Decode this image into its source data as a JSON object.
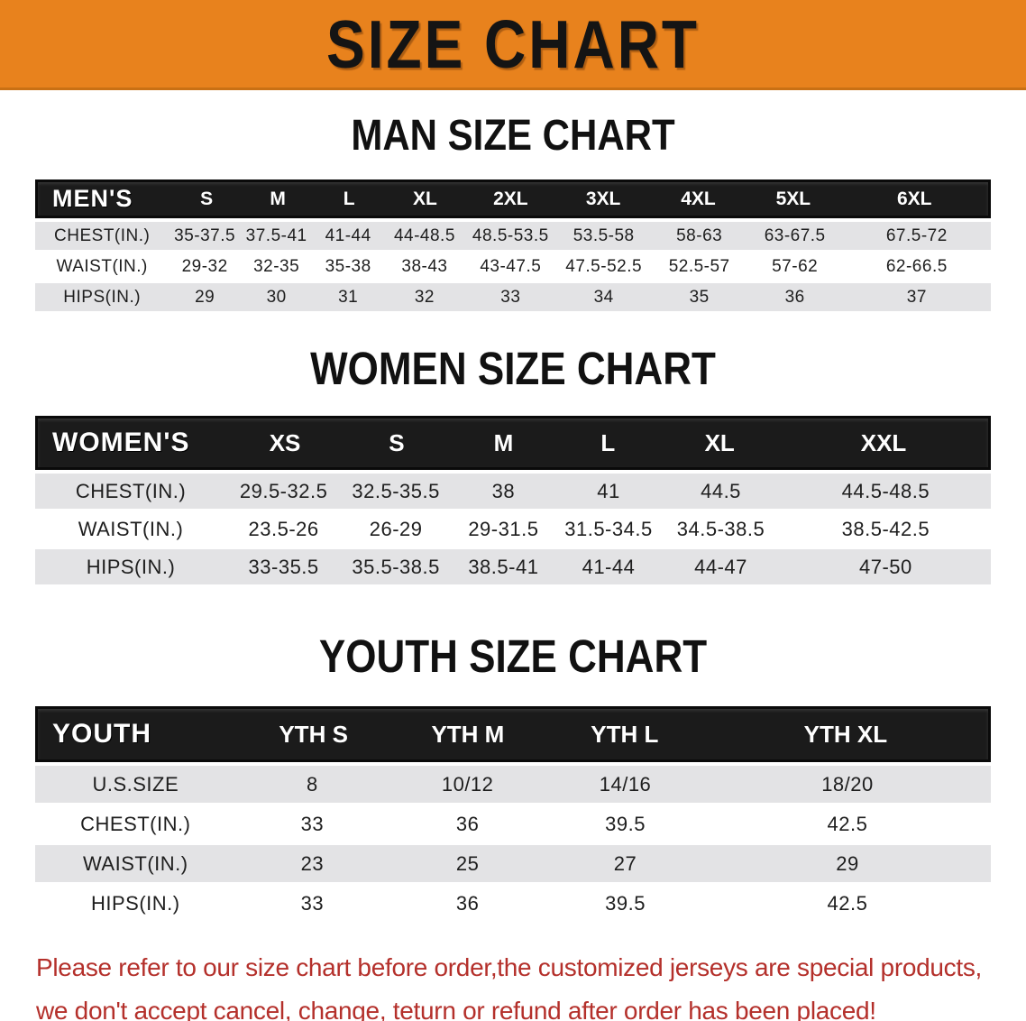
{
  "banner": {
    "title": "SIZE CHART",
    "bg_color": "#E8821D",
    "text_color": "#141414"
  },
  "men": {
    "heading": "MAN SIZE CHART",
    "label": "MEN'S",
    "sizes": [
      "S",
      "M",
      "L",
      "XL",
      "2XL",
      "3XL",
      "4XL",
      "5XL",
      "6XL"
    ],
    "rows": [
      {
        "label": "CHEST(IN.)",
        "values": [
          "35-37.5",
          "37.5-41",
          "41-44",
          "44-48.5",
          "48.5-53.5",
          "53.5-58",
          "58-63",
          "63-67.5",
          "67.5-72"
        ]
      },
      {
        "label": "WAIST(IN.)",
        "values": [
          "29-32",
          "32-35",
          "35-38",
          "38-43",
          "43-47.5",
          "47.5-52.5",
          "52.5-57",
          "57-62",
          "62-66.5"
        ]
      },
      {
        "label": "HIPS(IN.)",
        "values": [
          "29",
          "30",
          "31",
          "32",
          "33",
          "34",
          "35",
          "36",
          "37"
        ]
      }
    ]
  },
  "women": {
    "heading": "WOMEN SIZE CHART",
    "label": "WOMEN'S",
    "sizes": [
      "XS",
      "S",
      "M",
      "L",
      "XL",
      "XXL"
    ],
    "rows": [
      {
        "label": "CHEST(IN.)",
        "values": [
          "29.5-32.5",
          "32.5-35.5",
          "38",
          "41",
          "44.5",
          "44.5-48.5"
        ]
      },
      {
        "label": "WAIST(IN.)",
        "values": [
          "23.5-26",
          "26-29",
          "29-31.5",
          "31.5-34.5",
          "34.5-38.5",
          "38.5-42.5"
        ]
      },
      {
        "label": "HIPS(IN.)",
        "values": [
          "33-35.5",
          "35.5-38.5",
          "38.5-41",
          "41-44",
          "44-47",
          "47-50"
        ]
      }
    ]
  },
  "youth": {
    "heading": "YOUTH SIZE CHART",
    "label": "YOUTH",
    "sizes": [
      "YTH S",
      "YTH M",
      "YTH L",
      "YTH XL"
    ],
    "rows": [
      {
        "label": "U.S.SIZE",
        "values": [
          "8",
          "10/12",
          "14/16",
          "18/20"
        ]
      },
      {
        "label": "CHEST(IN.)",
        "values": [
          "33",
          "36",
          "39.5",
          "42.5"
        ]
      },
      {
        "label": "WAIST(IN.)",
        "values": [
          "23",
          "25",
          "27",
          "29"
        ]
      },
      {
        "label": "HIPS(IN.)",
        "values": [
          "33",
          "36",
          "39.5",
          "42.5"
        ]
      }
    ]
  },
  "disclaimer": {
    "line1": "Please refer to our size chart before order,the customized jerseys are special products,",
    "line2": "we don't accept cancel, change, teturn or refund after order has been placed!",
    "color": "#B4302B"
  }
}
